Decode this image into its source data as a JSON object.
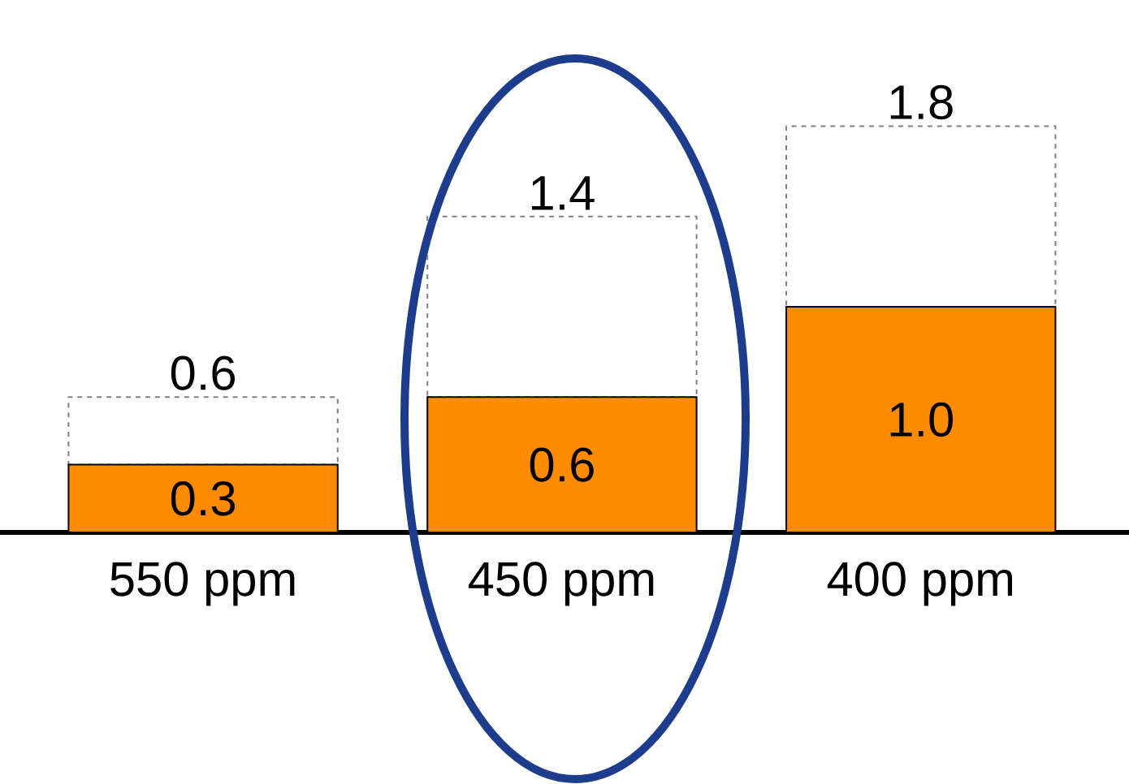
{
  "chart_data": {
    "type": "bar",
    "stacked": true,
    "categories": [
      "550 ppm",
      "450 ppm",
      "400 ppm"
    ],
    "series": [
      {
        "color": "#ff8c00",
        "values": [
          0.3,
          0.6,
          1.0
        ],
        "value_labels": [
          "0.3",
          "0.6",
          "1.0"
        ]
      },
      {
        "color": "#ffffff",
        "line_style": "dashed",
        "values": [
          0.3,
          0.8,
          0.8
        ]
      }
    ],
    "totals": [
      "0.6",
      "1.4",
      "1.8"
    ]
  }
}
